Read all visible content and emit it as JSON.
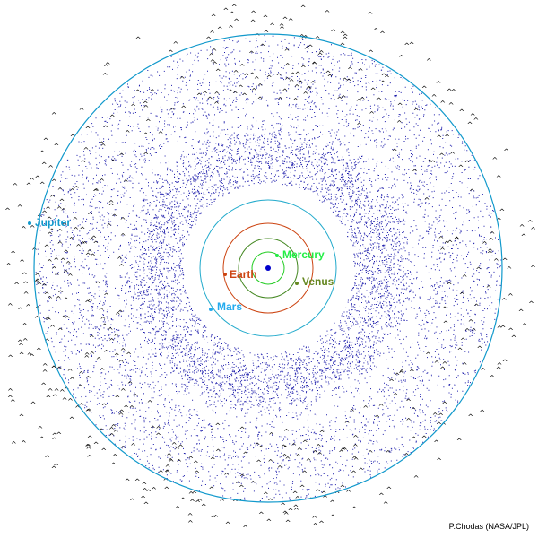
{
  "diagram": {
    "center": {
      "color": "#0000cc"
    },
    "orbits": [
      {
        "name": "Mercury",
        "color": "#22cc22"
      },
      {
        "name": "Venus",
        "color": "#448822"
      },
      {
        "name": "Earth",
        "color": "#cc4411"
      },
      {
        "name": "Mars",
        "color": "#22aacc"
      },
      {
        "name": "Jupiter",
        "color": "#1199cc"
      }
    ],
    "planets": [
      {
        "name": "Mercury",
        "label": "Mercury",
        "color": "#22ee44"
      },
      {
        "name": "Venus",
        "label": "Venus",
        "color": "#668822"
      },
      {
        "name": "Earth",
        "label": "Earth",
        "color": "#cc4411"
      },
      {
        "name": "Mars",
        "label": "Mars",
        "color": "#22aaee"
      },
      {
        "name": "Jupiter",
        "label": "Jupiter",
        "color": "#1199cc"
      }
    ],
    "asteroid_belt": {
      "color": "#1a1aaa"
    },
    "trojans": {
      "glyph": "^",
      "color": "#000000"
    },
    "credit": "P.Chodas (NASA/JPL)"
  }
}
